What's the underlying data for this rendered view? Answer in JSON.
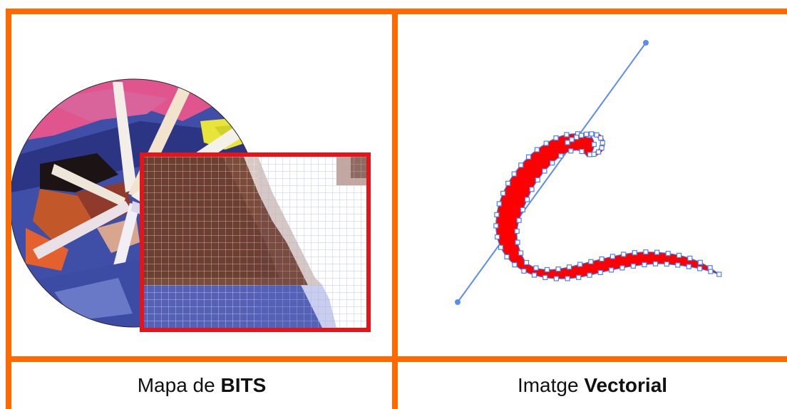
{
  "colors": {
    "frame": "#ff6a00",
    "zoom_border": "#e3151a",
    "curve_fill": "#ff0000",
    "anchor_stroke": "#4d7ef2",
    "handle_line": "#5b8cf2"
  },
  "panels": {
    "left": {
      "icon": "bitmap-icon",
      "caption_normal": "Mapa de",
      "caption_bold": "BITS"
    },
    "right": {
      "icon": "vector-curve-icon",
      "caption_normal": "Imatge",
      "caption_bold": "Vectorial"
    }
  }
}
